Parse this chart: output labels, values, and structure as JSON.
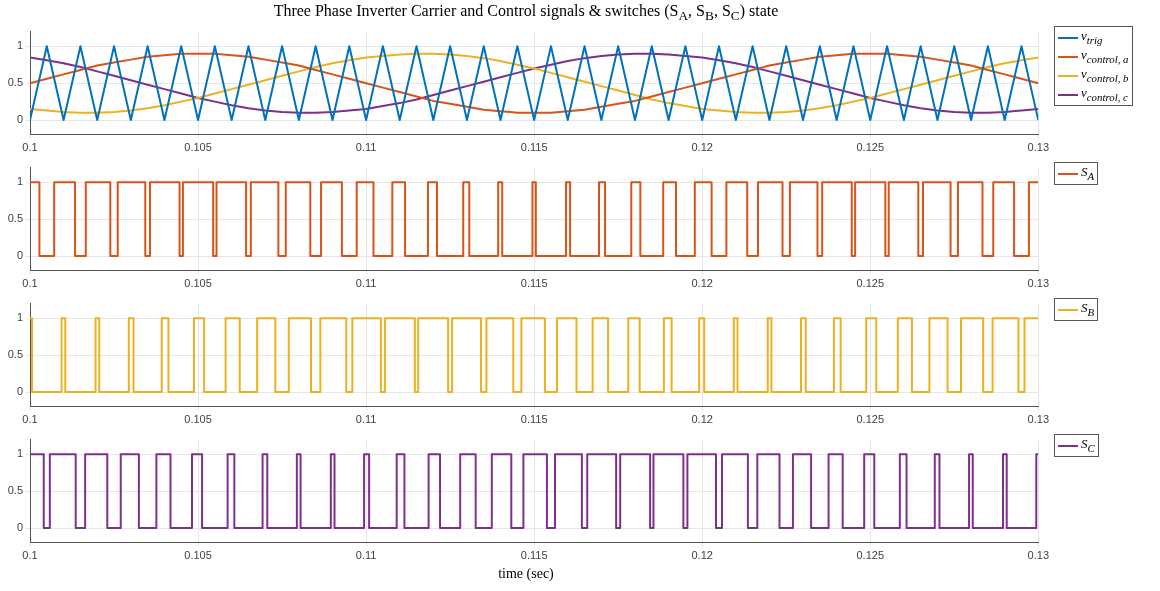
{
  "chart_data": [
    {
      "type": "line",
      "title": "Three Phase Inverter Carrier and Control signals & switches (S$_{A}$, S$_{B}$, S$_{C}$) state",
      "x": [
        0.1,
        0.1005,
        0.101,
        0.1015,
        0.102,
        0.1025,
        0.103,
        0.1035,
        0.104,
        0.1045,
        0.105,
        0.1055,
        0.106,
        0.1065,
        0.107,
        0.1075,
        0.108,
        0.1085,
        0.109,
        0.1095,
        0.11,
        0.1105,
        0.111,
        0.1115,
        0.112,
        0.1125,
        0.113,
        0.1135,
        0.114,
        0.1145,
        0.115,
        0.1155,
        0.116,
        0.1165,
        0.117,
        0.1175,
        0.118,
        0.1185,
        0.119,
        0.1195,
        0.12,
        0.1205,
        0.121,
        0.1215,
        0.122,
        0.1225,
        0.123,
        0.1235,
        0.124,
        0.1245,
        0.125,
        0.1255,
        0.126,
        0.1265,
        0.127,
        0.1275,
        0.128,
        0.1285,
        0.129,
        0.1295,
        0.13
      ],
      "series": [
        {
          "name": "v$_{trig}$",
          "color": "#0072bd",
          "values": [
            0,
            1,
            0,
            1,
            0,
            1,
            0,
            1,
            0,
            1,
            0,
            1,
            0,
            1,
            0,
            1,
            0,
            1,
            0,
            1,
            0,
            1,
            0,
            1,
            0,
            1,
            0,
            1,
            0,
            1,
            0,
            1,
            0,
            1,
            0,
            1,
            0,
            1,
            0,
            1,
            0,
            1,
            0,
            1,
            0,
            1,
            0,
            1,
            0,
            1,
            0,
            1,
            0,
            1,
            0,
            1,
            0,
            1,
            0,
            1,
            0
          ]
        },
        {
          "name": "v$_{control, a}$",
          "color": "#d95319",
          "values": [
            0.5,
            0.56,
            0.62,
            0.68,
            0.74,
            0.78,
            0.82,
            0.86,
            0.88,
            0.9,
            0.9,
            0.9,
            0.88,
            0.86,
            0.82,
            0.78,
            0.74,
            0.68,
            0.62,
            0.56,
            0.5,
            0.44,
            0.38,
            0.32,
            0.26,
            0.22,
            0.18,
            0.14,
            0.12,
            0.1,
            0.1,
            0.1,
            0.12,
            0.14,
            0.18,
            0.22,
            0.26,
            0.32,
            0.38,
            0.44,
            0.5,
            0.56,
            0.62,
            0.68,
            0.74,
            0.78,
            0.82,
            0.86,
            0.88,
            0.9,
            0.9,
            0.9,
            0.88,
            0.86,
            0.82,
            0.78,
            0.74,
            0.68,
            0.62,
            0.56,
            0.5
          ]
        },
        {
          "name": "v$_{control, b}$",
          "color": "#edb120",
          "values": [
            0.15,
            0.13,
            0.11,
            0.1,
            0.1,
            0.11,
            0.13,
            0.16,
            0.2,
            0.25,
            0.3,
            0.36,
            0.42,
            0.48,
            0.54,
            0.6,
            0.66,
            0.72,
            0.77,
            0.81,
            0.85,
            0.87,
            0.89,
            0.9,
            0.9,
            0.89,
            0.87,
            0.84,
            0.8,
            0.75,
            0.7,
            0.64,
            0.58,
            0.52,
            0.46,
            0.4,
            0.34,
            0.28,
            0.23,
            0.19,
            0.15,
            0.13,
            0.11,
            0.1,
            0.1,
            0.11,
            0.13,
            0.16,
            0.2,
            0.25,
            0.3,
            0.36,
            0.42,
            0.48,
            0.54,
            0.6,
            0.66,
            0.72,
            0.77,
            0.81,
            0.85
          ]
        },
        {
          "name": "v$_{control, c}$",
          "color": "#7e2f8e",
          "values": [
            0.85,
            0.81,
            0.77,
            0.72,
            0.66,
            0.6,
            0.54,
            0.48,
            0.42,
            0.36,
            0.3,
            0.25,
            0.2,
            0.16,
            0.13,
            0.11,
            0.1,
            0.1,
            0.11,
            0.13,
            0.15,
            0.19,
            0.23,
            0.28,
            0.34,
            0.4,
            0.46,
            0.52,
            0.58,
            0.64,
            0.7,
            0.75,
            0.8,
            0.84,
            0.87,
            0.89,
            0.9,
            0.9,
            0.89,
            0.87,
            0.85,
            0.81,
            0.77,
            0.72,
            0.66,
            0.6,
            0.54,
            0.48,
            0.42,
            0.36,
            0.3,
            0.25,
            0.2,
            0.16,
            0.13,
            0.11,
            0.1,
            0.1,
            0.11,
            0.13,
            0.15
          ]
        }
      ],
      "xlim": [
        0.1,
        0.13
      ],
      "xticks": [
        0.1,
        0.105,
        0.11,
        0.115,
        0.12,
        0.125,
        0.13
      ],
      "ylim": [
        -0.2,
        1.2
      ],
      "yticks": [
        0,
        0.5,
        1
      ],
      "grid": true,
      "legend": "right"
    },
    {
      "type": "step",
      "series": [
        {
          "name": "S$_{A}$",
          "color": "#d95319",
          "x": [
            0.1,
            0.10028,
            0.10072,
            0.10134,
            0.10166,
            0.10239,
            0.10261,
            0.10343,
            0.10357,
            0.10445,
            0.10455,
            0.10545,
            0.10555,
            0.10643,
            0.10657,
            0.10739,
            0.10761,
            0.10834,
            0.10866,
            0.10928,
            0.10972,
            0.11022,
            0.11078,
            0.11116,
            0.11184,
            0.11211,
            0.11289,
            0.11307,
            0.11393,
            0.11405,
            0.11495,
            0.11505,
            0.11595,
            0.11607,
            0.11693,
            0.11711,
            0.11789,
            0.11816,
            0.11884,
            0.11922,
            0.11978,
            0.12028,
            0.12072,
            0.12134,
            0.12166,
            0.12239,
            0.12261,
            0.12343,
            0.12357,
            0.12445,
            0.12455,
            0.12545,
            0.12555,
            0.12643,
            0.12657,
            0.12739,
            0.12761,
            0.12834,
            0.12866,
            0.12928,
            0.12972,
            0.13
          ],
          "values": [
            1,
            0,
            1,
            0,
            1,
            0,
            1,
            0,
            1,
            0,
            1,
            0,
            1,
            0,
            1,
            0,
            1,
            0,
            1,
            0,
            1,
            0,
            1,
            0,
            1,
            0,
            1,
            0,
            1,
            0,
            1,
            0,
            1,
            0,
            1,
            0,
            1,
            0,
            1,
            0,
            1,
            0,
            1,
            0,
            1,
            0,
            1,
            0,
            1,
            0,
            1,
            0,
            1,
            0,
            1,
            0,
            1,
            0,
            1,
            0,
            1,
            1
          ]
        }
      ],
      "xlim": [
        0.1,
        0.13
      ],
      "xticks": [
        0.1,
        0.105,
        0.11,
        0.115,
        0.12,
        0.125,
        0.13
      ],
      "ylim": [
        -0.2,
        1.2
      ],
      "yticks": [
        0,
        0.5,
        1
      ],
      "grid": true,
      "legend": "right"
    },
    {
      "type": "step",
      "series": [
        {
          "name": "S$_{B}$",
          "color": "#edb120",
          "x": [
            0.1,
            0.10006,
            0.10094,
            0.10105,
            0.10195,
            0.10206,
            0.10294,
            0.10308,
            0.10392,
            0.10412,
            0.10488,
            0.10518,
            0.10582,
            0.10624,
            0.10676,
            0.1073,
            0.1077,
            0.10836,
            0.10864,
            0.10941,
            0.10959,
            0.11044,
            0.11056,
            0.11145,
            0.11155,
            0.11244,
            0.11256,
            0.11342,
            0.11358,
            0.11438,
            0.11462,
            0.11532,
            0.11568,
            0.11626,
            0.11674,
            0.1172,
            0.1178,
            0.11814,
            0.11886,
            0.11909,
            0.11991,
            0.12006,
            0.12094,
            0.12105,
            0.12195,
            0.12206,
            0.12294,
            0.12308,
            0.12392,
            0.12412,
            0.12488,
            0.12518,
            0.12582,
            0.12624,
            0.12676,
            0.1273,
            0.1277,
            0.12836,
            0.12864,
            0.12941,
            0.12959,
            0.13
          ],
          "values": [
            1,
            0,
            1,
            0,
            1,
            0,
            1,
            0,
            1,
            0,
            1,
            0,
            1,
            0,
            1,
            0,
            1,
            0,
            1,
            0,
            1,
            0,
            1,
            0,
            1,
            0,
            1,
            0,
            1,
            0,
            1,
            0,
            1,
            0,
            1,
            0,
            1,
            0,
            1,
            0,
            1,
            0,
            1,
            0,
            1,
            0,
            1,
            0,
            1,
            0,
            1,
            0,
            1,
            0,
            1,
            0,
            1,
            0,
            1,
            0,
            1,
            1
          ]
        }
      ],
      "xlim": [
        0.1,
        0.13
      ],
      "xticks": [
        0.1,
        0.105,
        0.11,
        0.115,
        0.12,
        0.125,
        0.13
      ],
      "ylim": [
        -0.2,
        1.2
      ],
      "yticks": [
        0,
        0.5,
        1
      ],
      "grid": true,
      "legend": "right"
    },
    {
      "type": "step",
      "xlabel": "time (sec)",
      "series": [
        {
          "name": "S$_{C}$",
          "color": "#7e2f8e",
          "x": [
            0.1,
            0.10041,
            0.10059,
            0.10136,
            0.10164,
            0.1023,
            0.1027,
            0.10324,
            0.10376,
            0.10418,
            0.10482,
            0.10512,
            0.10588,
            0.10608,
            0.10692,
            0.10706,
            0.10794,
            0.10805,
            0.10895,
            0.10906,
            0.10994,
            0.11009,
            0.11091,
            0.11114,
            0.11186,
            0.1122,
            0.1128,
            0.11326,
            0.11374,
            0.11432,
            0.11468,
            0.11538,
            0.11562,
            0.11642,
            0.11658,
            0.11744,
            0.11756,
            0.11845,
            0.11855,
            0.11944,
            0.11956,
            0.12041,
            0.12059,
            0.12136,
            0.12164,
            0.1223,
            0.1227,
            0.12324,
            0.12376,
            0.12418,
            0.12482,
            0.12512,
            0.12588,
            0.12608,
            0.12692,
            0.12706,
            0.12794,
            0.12805,
            0.12895,
            0.12906,
            0.12994,
            0.13
          ],
          "values": [
            1,
            0,
            1,
            0,
            1,
            0,
            1,
            0,
            1,
            0,
            1,
            0,
            1,
            0,
            1,
            0,
            1,
            0,
            1,
            0,
            1,
            0,
            1,
            0,
            1,
            0,
            1,
            0,
            1,
            0,
            1,
            0,
            1,
            0,
            1,
            0,
            1,
            0,
            1,
            0,
            1,
            0,
            1,
            0,
            1,
            0,
            1,
            0,
            1,
            0,
            1,
            0,
            1,
            0,
            1,
            0,
            1,
            0,
            1,
            0,
            1,
            1
          ]
        }
      ],
      "xlim": [
        0.1,
        0.13
      ],
      "xticks": [
        0.1,
        0.105,
        0.11,
        0.115,
        0.12,
        0.125,
        0.13
      ],
      "ylim": [
        -0.2,
        1.2
      ],
      "yticks": [
        0,
        0.5,
        1
      ],
      "grid": true,
      "legend": "right"
    }
  ]
}
